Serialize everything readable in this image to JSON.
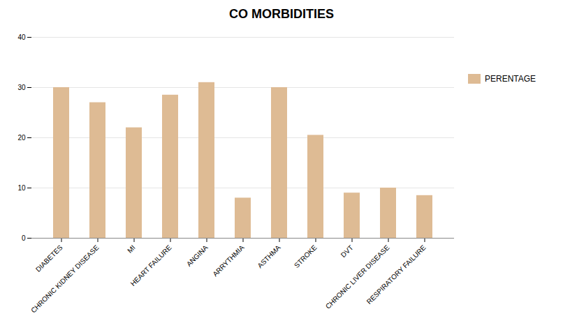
{
  "chart_data": {
    "type": "bar",
    "title": "CO MORBIDITIES",
    "categories": [
      "DIABETES",
      "CHRONIC KIDNEY DISEASE",
      "MI",
      "HEART FAILURE",
      "ANGINA",
      "ARRYTHMIA",
      "ASTHMA",
      "STROKE",
      "DVT",
      "CHRONIC LIVER DISEASE",
      "RESPIRATORY FAILURE"
    ],
    "series": [
      {
        "name": "PERENTAGE",
        "color": "#DEBB94",
        "values": [
          30,
          27,
          22,
          28.5,
          31,
          8,
          30,
          20.5,
          9,
          10,
          8.5
        ]
      }
    ],
    "ylim": [
      0,
      40
    ],
    "yticks": [
      0,
      10,
      20,
      30,
      40
    ],
    "grid": true,
    "legend": "right"
  }
}
